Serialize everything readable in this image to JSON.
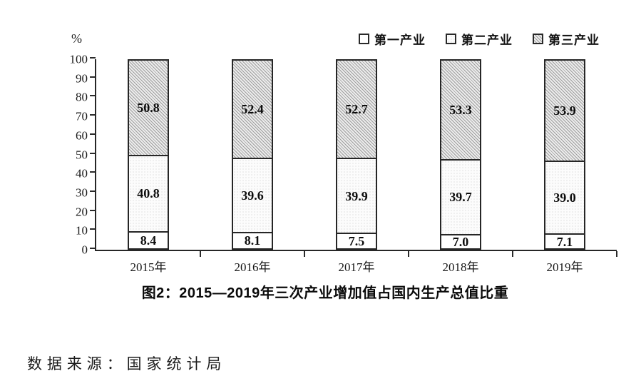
{
  "chart": {
    "unit_label": "%",
    "legend": [
      {
        "label": "第一产业",
        "pattern": "plain"
      },
      {
        "label": "第二产业",
        "pattern": "dots"
      },
      {
        "label": "第三产业",
        "pattern": "hatch"
      }
    ],
    "caption": "图2：2015—2019年三次产业增加值占国内生产总值比重"
  },
  "chart_data": {
    "type": "bar",
    "stacked": true,
    "categories": [
      "2015年",
      "2016年",
      "2017年",
      "2018年",
      "2019年"
    ],
    "series": [
      {
        "name": "第一产业",
        "pattern": "plain",
        "values": [
          8.4,
          8.1,
          7.5,
          7.0,
          7.1
        ]
      },
      {
        "name": "第二产业",
        "pattern": "dots",
        "values": [
          40.8,
          39.6,
          39.9,
          39.7,
          39.0
        ]
      },
      {
        "name": "第三产业",
        "pattern": "hatch",
        "values": [
          50.8,
          52.4,
          52.7,
          53.3,
          53.9
        ]
      }
    ],
    "title": "图2：2015—2019年三次产业增加值占国内生产总值比重",
    "xlabel": "",
    "ylabel": "%",
    "ylim": [
      0,
      100
    ],
    "yticks": [
      0,
      10,
      20,
      30,
      40,
      50,
      60,
      70,
      80,
      90,
      100
    ],
    "legend_position": "top-right",
    "grid": false,
    "colors": {
      "bar_border": "#262626",
      "hatch_line": "#9d9d9d",
      "hatch_bg": "#ececec",
      "text": "#1a1a1a"
    }
  },
  "footer": {
    "source_text": "数据来源：国家统计局"
  }
}
